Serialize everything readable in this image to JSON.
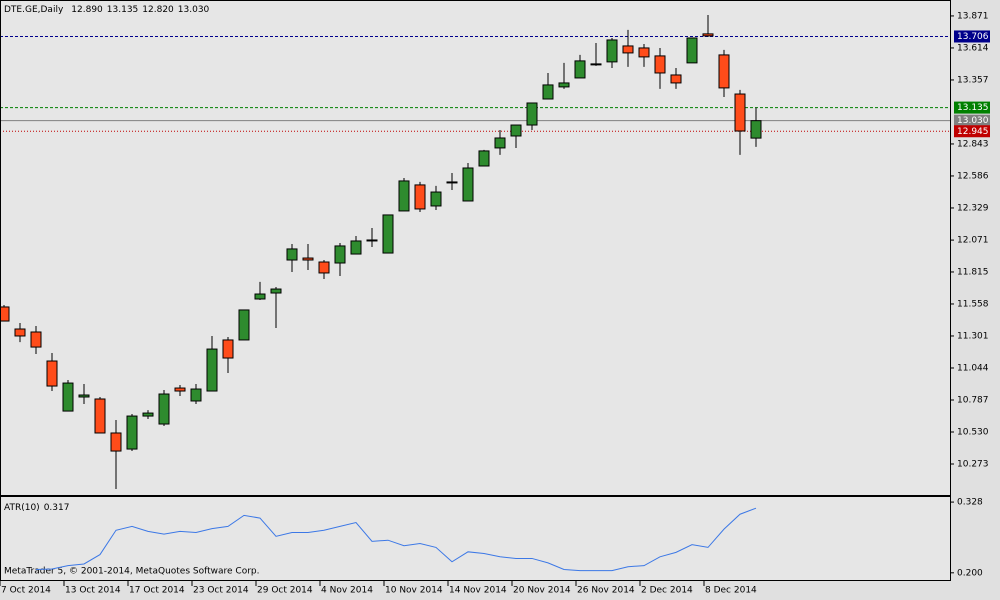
{
  "chart_data": {
    "type": "candlestick",
    "title": "DTE.GE,Daily",
    "last_bar_labels": [
      "12.890",
      "13.135",
      "12.820",
      "13.030"
    ],
    "categories": [
      "7 Oct 2014",
      null,
      null,
      null,
      "13 Oct 2014",
      null,
      null,
      null,
      "17 Oct 2014",
      null,
      null,
      null,
      "23 Oct 2014",
      null,
      null,
      null,
      "29 Oct 2014",
      null,
      null,
      null,
      "4 Nov 2014",
      null,
      null,
      null,
      "10 Nov 2014",
      null,
      null,
      null,
      "14 Nov 2014",
      null,
      null,
      null,
      "20 Nov 2014",
      null,
      null,
      null,
      "26 Nov 2014",
      null,
      null,
      null,
      "2 Dec 2014",
      null,
      null,
      null,
      "8 Dec 2014",
      null,
      null,
      null
    ],
    "open": [
      11.534,
      11.357,
      11.333,
      11.1,
      10.698,
      10.811,
      10.795,
      10.522,
      10.393,
      10.658,
      10.594,
      10.883,
      10.779,
      10.859,
      11.269,
      11.269,
      11.598,
      11.646,
      11.911,
      11.927,
      11.895,
      11.887,
      11.959,
      12.064,
      11.967,
      12.305,
      12.514,
      12.345,
      12.53,
      12.385,
      12.666,
      12.811,
      12.907,
      12.995,
      13.204,
      13.301,
      13.373,
      13.478,
      13.502,
      13.63,
      13.614,
      13.55,
      13.397,
      13.494,
      13.727,
      13.558,
      13.244,
      12.89
    ],
    "high": [
      11.55,
      11.405,
      11.381,
      11.164,
      10.947,
      10.915,
      10.811,
      10.626,
      10.674,
      10.706,
      10.867,
      10.907,
      10.915,
      11.301,
      11.293,
      11.51,
      11.735,
      11.694,
      12.04,
      12.04,
      11.911,
      12.048,
      12.104,
      12.168,
      12.273,
      12.57,
      12.538,
      12.506,
      12.61,
      12.69,
      12.795,
      12.955,
      12.995,
      13.172,
      13.413,
      13.494,
      13.558,
      13.654,
      13.694,
      13.759,
      13.646,
      13.614,
      13.453,
      13.694,
      13.879,
      13.598,
      13.277,
      13.135
    ],
    "low": [
      11.421,
      11.252,
      11.156,
      10.859,
      10.698,
      10.755,
      10.522,
      10.072,
      10.377,
      10.634,
      10.578,
      10.819,
      10.755,
      10.859,
      11.004,
      11.269,
      11.59,
      11.365,
      11.815,
      11.831,
      11.759,
      11.783,
      11.959,
      12.016,
      11.967,
      12.305,
      12.297,
      12.313,
      12.473,
      12.385,
      12.666,
      12.755,
      12.811,
      12.955,
      13.204,
      13.285,
      13.373,
      13.47,
      13.453,
      13.462,
      13.462,
      13.285,
      13.285,
      13.494,
      13.703,
      13.22,
      12.755,
      12.82
    ],
    "close": [
      11.421,
      11.301,
      11.212,
      10.899,
      10.923,
      10.827,
      10.522,
      10.377,
      10.658,
      10.682,
      10.835,
      10.859,
      10.875,
      11.196,
      11.124,
      11.51,
      11.638,
      11.678,
      12.0,
      11.911,
      11.807,
      12.024,
      12.064,
      12.072,
      12.273,
      12.546,
      12.321,
      12.457,
      12.538,
      12.65,
      12.787,
      12.891,
      12.995,
      13.172,
      13.317,
      13.333,
      13.51,
      13.486,
      13.678,
      13.574,
      13.542,
      13.413,
      13.333,
      13.694,
      13.711,
      13.293,
      12.947,
      13.03
    ],
    "up_color": "#2e8b2e",
    "down_color": "#ff4c1a",
    "ylim": [
      10.024,
      13.999
    ],
    "yticks": [
      13.871,
      13.614,
      13.357,
      12.843,
      12.586,
      12.329,
      12.071,
      11.815,
      11.558,
      11.301,
      11.044,
      10.787,
      {
        "value": 10.53,
        "label": "10.530"
      },
      10.273
    ],
    "levels": [
      {
        "value": 13.706,
        "color": "#00008b",
        "style": "dashed"
      },
      {
        "value": 13.135,
        "color": "#008000",
        "style": "dashed"
      },
      {
        "value": 13.03,
        "label": "13.030",
        "color": "#808080",
        "style": "solid"
      },
      {
        "value": 12.945,
        "color": "#c00000",
        "style": "dotted"
      }
    ],
    "indicator": {
      "type": "line",
      "title": "ATR(10)",
      "color": "#3c78e6",
      "values": [
        null,
        null,
        0.206,
        0.207,
        0.213,
        0.216,
        0.233,
        0.277,
        0.284,
        0.275,
        0.27,
        0.275,
        0.273,
        0.28,
        0.284,
        0.304,
        0.299,
        0.266,
        0.273,
        0.273,
        0.277,
        0.284,
        0.291,
        0.257,
        0.259,
        0.249,
        0.253,
        0.246,
        0.22,
        0.238,
        0.235,
        0.229,
        0.226,
        0.226,
        0.218,
        0.206,
        0.204,
        0.204,
        0.204,
        0.211,
        0.213,
        0.229,
        0.237,
        0.251,
        0.246,
        0.279,
        0.306,
        0.317
      ],
      "ylim": [
        0.187,
        0.339
      ],
      "yticks": [
        0.328,
        {
          "value": 0.2,
          "label": "0.200"
        }
      ]
    },
    "footer": "MetaTrader 5, © 2001-2014, MetaQuotes Software Corp."
  }
}
